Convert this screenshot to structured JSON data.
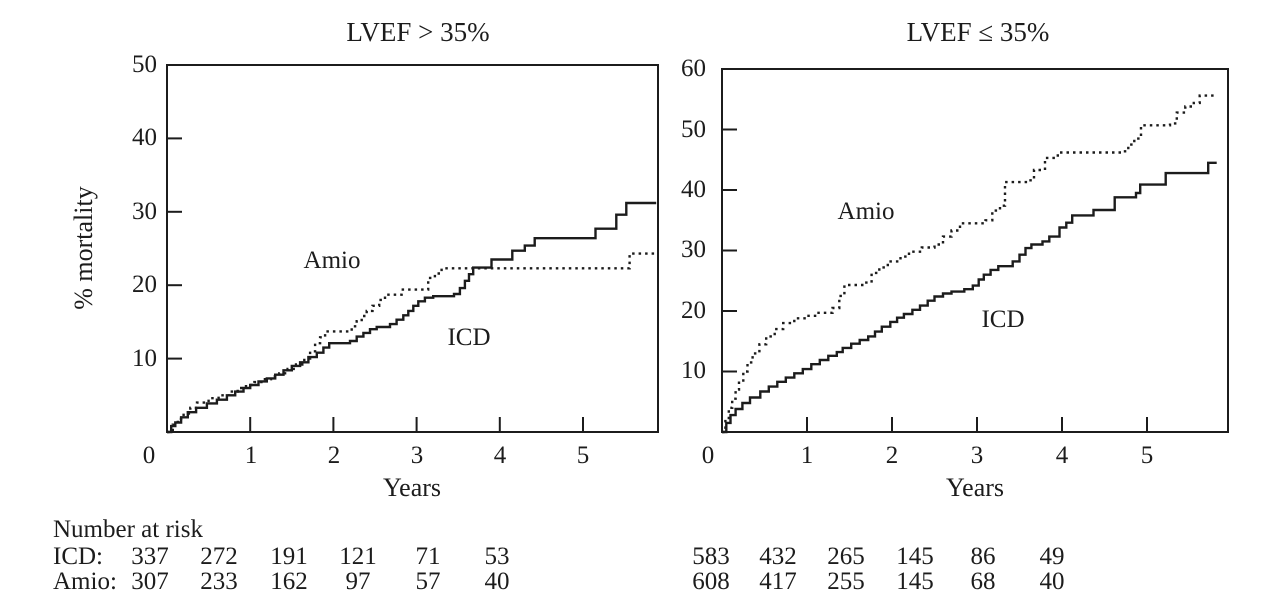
{
  "chart_data": [
    {
      "type": "line",
      "subtype": "kaplan-meier-step",
      "title": "LVEF > 35%",
      "xlabel": "Years",
      "ylabel": "% mortality",
      "xlim": [
        0,
        5.9
      ],
      "ylim": [
        0,
        50
      ],
      "x_ticks": [
        0,
        1,
        2,
        3,
        4,
        5
      ],
      "y_ticks": [
        10,
        20,
        30,
        40,
        50
      ],
      "x_tick_labels": [
        "0",
        "1",
        "2",
        "3",
        "4",
        "5"
      ],
      "y_tick_labels_desc": [
        "50",
        "40",
        "30",
        "20",
        "10"
      ],
      "grid": false,
      "legend": "in-plot text labels",
      "series": [
        {
          "name": "ICD",
          "style": "solid",
          "points": [
            [
              0,
              0
            ],
            [
              0.05,
              0.8
            ],
            [
              0.1,
              1.3
            ],
            [
              0.17,
              2
            ],
            [
              0.25,
              2.7
            ],
            [
              0.35,
              3.3
            ],
            [
              0.48,
              3.9
            ],
            [
              0.6,
              4.4
            ],
            [
              0.72,
              5
            ],
            [
              0.82,
              5.5
            ],
            [
              0.92,
              6
            ],
            [
              1.0,
              6.4
            ],
            [
              1.1,
              6.9
            ],
            [
              1.2,
              7.3
            ],
            [
              1.3,
              7.8
            ],
            [
              1.4,
              8.4
            ],
            [
              1.5,
              9
            ],
            [
              1.6,
              9.5
            ],
            [
              1.7,
              10.2
            ],
            [
              1.8,
              10.8
            ],
            [
              1.88,
              11.5
            ],
            [
              1.95,
              12.1
            ],
            [
              2.2,
              12.4
            ],
            [
              2.28,
              13
            ],
            [
              2.36,
              13.5
            ],
            [
              2.44,
              14
            ],
            [
              2.52,
              14.3
            ],
            [
              2.68,
              14.7
            ],
            [
              2.76,
              15.3
            ],
            [
              2.84,
              15.9
            ],
            [
              2.9,
              16.5
            ],
            [
              2.96,
              17.2
            ],
            [
              3.02,
              17.8
            ],
            [
              3.1,
              18.3
            ],
            [
              3.2,
              18.5
            ],
            [
              3.45,
              18.8
            ],
            [
              3.52,
              19.6
            ],
            [
              3.58,
              20.6
            ],
            [
              3.63,
              21.5
            ],
            [
              3.68,
              22.4
            ],
            [
              3.9,
              23.5
            ],
            [
              4.15,
              24.7
            ],
            [
              4.3,
              25.4
            ],
            [
              4.42,
              26.4
            ],
            [
              5.15,
              27.7
            ],
            [
              5.4,
              29.6
            ],
            [
              5.52,
              31.2
            ],
            [
              5.88,
              31.2
            ]
          ]
        },
        {
          "name": "Amio",
          "style": "dotted",
          "points": [
            [
              0,
              0
            ],
            [
              0.07,
              1
            ],
            [
              0.13,
              1.8
            ],
            [
              0.2,
              2.5
            ],
            [
              0.28,
              3.3
            ],
            [
              0.36,
              4
            ],
            [
              0.5,
              4.6
            ],
            [
              0.62,
              5
            ],
            [
              0.75,
              5.5
            ],
            [
              0.85,
              6
            ],
            [
              0.95,
              6.4
            ],
            [
              1.05,
              6.8
            ],
            [
              1.15,
              7.2
            ],
            [
              1.25,
              7.6
            ],
            [
              1.35,
              8
            ],
            [
              1.45,
              8.6
            ],
            [
              1.55,
              9.2
            ],
            [
              1.65,
              10
            ],
            [
              1.72,
              11
            ],
            [
              1.78,
              12.1
            ],
            [
              1.84,
              12.9
            ],
            [
              1.9,
              13.7
            ],
            [
              2.22,
              14.4
            ],
            [
              2.28,
              15.1
            ],
            [
              2.34,
              15.8
            ],
            [
              2.4,
              16.5
            ],
            [
              2.47,
              17.2
            ],
            [
              2.55,
              18
            ],
            [
              2.62,
              18.7
            ],
            [
              2.82,
              19.4
            ],
            [
              3.14,
              21
            ],
            [
              3.22,
              21.6
            ],
            [
              3.3,
              22.3
            ],
            [
              5.56,
              24.3
            ],
            [
              5.88,
              24.4
            ]
          ]
        }
      ],
      "curve_labels": [
        {
          "text": "Amio"
        },
        {
          "text": "ICD"
        }
      ]
    },
    {
      "type": "line",
      "subtype": "kaplan-meier-step",
      "title": "LVEF ≤ 35%",
      "xlabel": "Years",
      "ylabel": "",
      "xlim": [
        0,
        5.95
      ],
      "ylim": [
        0,
        60
      ],
      "x_ticks": [
        0,
        1,
        2,
        3,
        4,
        5
      ],
      "y_ticks": [
        10,
        20,
        30,
        40,
        50,
        60
      ],
      "x_tick_labels": [
        "0",
        "1",
        "2",
        "3",
        "4",
        "5"
      ],
      "y_tick_labels_desc": [
        "60",
        "50",
        "40",
        "30",
        "20",
        "10"
      ],
      "grid": false,
      "legend": "in-plot text labels",
      "series": [
        {
          "name": "ICD",
          "style": "solid",
          "points": [
            [
              0,
              0
            ],
            [
              0.05,
              1.5
            ],
            [
              0.1,
              2.8
            ],
            [
              0.16,
              3.8
            ],
            [
              0.24,
              4.8
            ],
            [
              0.33,
              5.7
            ],
            [
              0.45,
              6.7
            ],
            [
              0.55,
              7.5
            ],
            [
              0.65,
              8.3
            ],
            [
              0.75,
              9
            ],
            [
              0.85,
              9.7
            ],
            [
              0.95,
              10.4
            ],
            [
              1.05,
              11.2
            ],
            [
              1.15,
              11.9
            ],
            [
              1.25,
              12.6
            ],
            [
              1.35,
              13.2
            ],
            [
              1.42,
              13.9
            ],
            [
              1.52,
              14.6
            ],
            [
              1.62,
              15.2
            ],
            [
              1.72,
              15.8
            ],
            [
              1.8,
              16.6
            ],
            [
              1.88,
              17.4
            ],
            [
              1.98,
              18.2
            ],
            [
              2.06,
              18.9
            ],
            [
              2.14,
              19.5
            ],
            [
              2.24,
              20.2
            ],
            [
              2.33,
              20.9
            ],
            [
              2.42,
              21.7
            ],
            [
              2.5,
              22.4
            ],
            [
              2.6,
              22.9
            ],
            [
              2.7,
              23.2
            ],
            [
              2.85,
              23.6
            ],
            [
              2.95,
              24.2
            ],
            [
              3.02,
              25.2
            ],
            [
              3.08,
              26
            ],
            [
              3.16,
              26.8
            ],
            [
              3.25,
              27.4
            ],
            [
              3.42,
              28.2
            ],
            [
              3.5,
              29.3
            ],
            [
              3.57,
              30.4
            ],
            [
              3.64,
              31
            ],
            [
              3.77,
              31.5
            ],
            [
              3.85,
              32.3
            ],
            [
              3.97,
              33.8
            ],
            [
              4.05,
              34.6
            ],
            [
              4.12,
              35.8
            ],
            [
              4.37,
              36.7
            ],
            [
              4.62,
              38.8
            ],
            [
              4.87,
              39.5
            ],
            [
              4.92,
              40.9
            ],
            [
              5.22,
              42.8
            ],
            [
              5.72,
              44.5
            ],
            [
              5.82,
              44.5
            ]
          ]
        },
        {
          "name": "Amio",
          "style": "dotted",
          "points": [
            [
              0,
              0
            ],
            [
              0.04,
              2
            ],
            [
              0.08,
              4
            ],
            [
              0.12,
              5.5
            ],
            [
              0.16,
              7
            ],
            [
              0.2,
              8.5
            ],
            [
              0.25,
              10
            ],
            [
              0.3,
              11.5
            ],
            [
              0.36,
              13
            ],
            [
              0.44,
              14.5
            ],
            [
              0.52,
              15.8
            ],
            [
              0.62,
              17
            ],
            [
              0.72,
              18
            ],
            [
              0.85,
              18.8
            ],
            [
              1.0,
              19.2
            ],
            [
              1.12,
              19.7
            ],
            [
              1.3,
              20.5
            ],
            [
              1.38,
              22.5
            ],
            [
              1.44,
              24.3
            ],
            [
              1.68,
              24.7
            ],
            [
              1.76,
              26.3
            ],
            [
              1.85,
              27.2
            ],
            [
              1.95,
              28.2
            ],
            [
              2.1,
              29
            ],
            [
              2.2,
              29.8
            ],
            [
              2.35,
              30.5
            ],
            [
              2.5,
              31
            ],
            [
              2.6,
              32.3
            ],
            [
              2.7,
              33.3
            ],
            [
              2.8,
              34.5
            ],
            [
              3.1,
              35
            ],
            [
              3.18,
              36.6
            ],
            [
              3.27,
              37.4
            ],
            [
              3.33,
              41.3
            ],
            [
              3.6,
              41.6
            ],
            [
              3.67,
              43.3
            ],
            [
              3.8,
              45.3
            ],
            [
              3.95,
              46.2
            ],
            [
              4.7,
              46.4
            ],
            [
              4.78,
              47.5
            ],
            [
              4.85,
              48.5
            ],
            [
              4.93,
              50.7
            ],
            [
              5.27,
              51
            ],
            [
              5.35,
              52.8
            ],
            [
              5.45,
              53.8
            ],
            [
              5.55,
              54.4
            ],
            [
              5.62,
              55.6
            ],
            [
              5.8,
              55.7
            ]
          ]
        }
      ],
      "curve_labels": [
        {
          "text": "Amio"
        },
        {
          "text": "ICD"
        }
      ]
    }
  ],
  "at_risk": {
    "heading": "Number at risk",
    "rows": [
      {
        "label": "ICD:",
        "left_values": [
          "337",
          "272",
          "191",
          "121",
          "71",
          "53"
        ],
        "right_values": [
          "583",
          "432",
          "265",
          "145",
          "86",
          "49"
        ]
      },
      {
        "label": "Amio:",
        "left_values": [
          "307",
          "233",
          "162",
          "97",
          "57",
          "40"
        ],
        "right_values": [
          "608",
          "417",
          "255",
          "145",
          "68",
          "40"
        ]
      }
    ]
  }
}
